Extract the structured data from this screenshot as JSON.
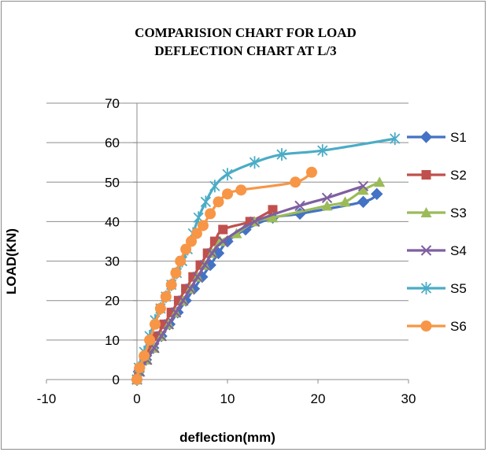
{
  "chart_data": {
    "type": "line",
    "title": [
      "COMPARISION CHART FOR LOAD",
      "DEFLECTION CHART AT L/3"
    ],
    "xlabel": "deflection(mm)",
    "ylabel": "LOAD(KN)",
    "xlim": [
      -10,
      30
    ],
    "ylim": [
      0,
      70
    ],
    "xticks": [
      "-10",
      "0",
      "10",
      "20",
      "30"
    ],
    "yticks": [
      "0",
      "10",
      "20",
      "30",
      "40",
      "50",
      "60",
      "70"
    ],
    "grid": "horizontal",
    "legend": "right",
    "series": [
      {
        "name": "S1",
        "color": "#4472c4",
        "marker": "diamond",
        "x": [
          0,
          0.2,
          1,
          1.8,
          2.7,
          3.6,
          4.5,
          5.4,
          6.3,
          7.2,
          8.1,
          9,
          10,
          12,
          15,
          18,
          25,
          26.5
        ],
        "y": [
          0,
          2,
          5,
          8,
          11,
          14,
          17,
          20,
          23,
          26,
          29,
          32,
          35,
          38,
          41,
          42,
          45,
          47
        ]
      },
      {
        "name": "S2",
        "color": "#c0504d",
        "marker": "square",
        "x": [
          0,
          0.2,
          0.8,
          1.5,
          2.2,
          3,
          3.8,
          4.6,
          5.4,
          6.2,
          7,
          7.8,
          8.6,
          9.5,
          12.5,
          15
        ],
        "y": [
          0,
          2,
          5,
          8,
          11,
          14,
          17,
          20,
          23,
          26,
          29,
          32,
          35,
          38,
          40,
          43
        ]
      },
      {
        "name": "S3",
        "color": "#9bbb59",
        "marker": "triangle",
        "x": [
          0,
          0.3,
          1.1,
          1.9,
          2.7,
          3.5,
          4.3,
          5.1,
          5.9,
          6.7,
          7.5,
          8.3,
          9.2,
          11,
          13,
          15,
          21,
          23,
          25,
          26.8
        ],
        "y": [
          0,
          2,
          5,
          8,
          11,
          14,
          17,
          20,
          23,
          26,
          29,
          32,
          35,
          37,
          40,
          41,
          44,
          45,
          48,
          50
        ]
      },
      {
        "name": "S4",
        "color": "#7f5fa0",
        "marker": "x",
        "x": [
          0,
          0.3,
          1.1,
          1.9,
          2.7,
          3.5,
          4.3,
          5.1,
          5.9,
          6.7,
          7.5,
          8.3,
          9.5,
          13,
          18,
          21,
          25
        ],
        "y": [
          0,
          2,
          5,
          8,
          11,
          14,
          17,
          20,
          23,
          26,
          29,
          32,
          35,
          40,
          44,
          46,
          49
        ]
      },
      {
        "name": "S5",
        "color": "#4bacc6",
        "marker": "star",
        "x": [
          0,
          0.2,
          0.8,
          1.4,
          2,
          2.6,
          3.2,
          3.8,
          4.4,
          5,
          5.6,
          6.2,
          6.8,
          7.6,
          8.6,
          10,
          13,
          16,
          20.5,
          28.5
        ],
        "y": [
          0,
          3,
          7,
          11,
          15,
          18,
          21,
          24,
          27,
          30,
          33,
          37,
          41,
          45,
          49,
          52,
          55,
          57,
          58,
          61
        ]
      },
      {
        "name": "S6",
        "color": "#f79646",
        "marker": "circle",
        "x": [
          0,
          0.3,
          0.8,
          1.4,
          2,
          2.6,
          3.2,
          3.8,
          4.3,
          4.8,
          5.4,
          6,
          6.6,
          7.3,
          8.1,
          9,
          10,
          11.5,
          17.5,
          19.3
        ],
        "y": [
          0,
          3,
          6,
          10,
          14,
          18,
          21,
          24,
          27,
          30,
          33,
          35,
          37,
          39,
          42,
          45,
          47,
          48,
          50,
          52.5
        ]
      }
    ]
  }
}
